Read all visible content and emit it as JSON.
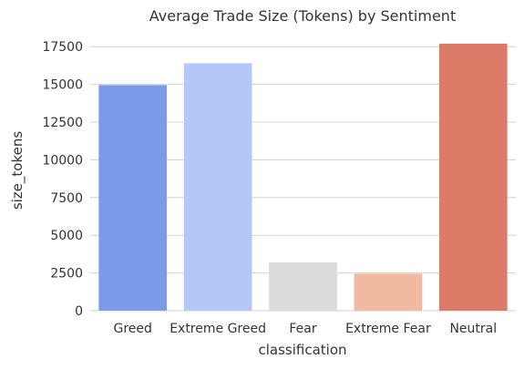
{
  "chart_data": {
    "type": "bar",
    "title": "Average Trade Size (Tokens) by Sentiment",
    "xlabel": "classification",
    "ylabel": "size_tokens",
    "categories": [
      "Greed",
      "Extreme Greed",
      "Fear",
      "Extreme Fear",
      "Neutral"
    ],
    "values": [
      14950,
      16400,
      3200,
      2450,
      17700
    ],
    "colors": [
      "#7b9ae8",
      "#b3c8f6",
      "#dcdcdc",
      "#f1b9a0",
      "#dc7c68"
    ],
    "ylim": [
      0,
      18600
    ],
    "yticks": [
      0,
      2500,
      5000,
      7500,
      10000,
      12500,
      15000,
      17500
    ],
    "grid": "horizontal",
    "legend": "none"
  }
}
